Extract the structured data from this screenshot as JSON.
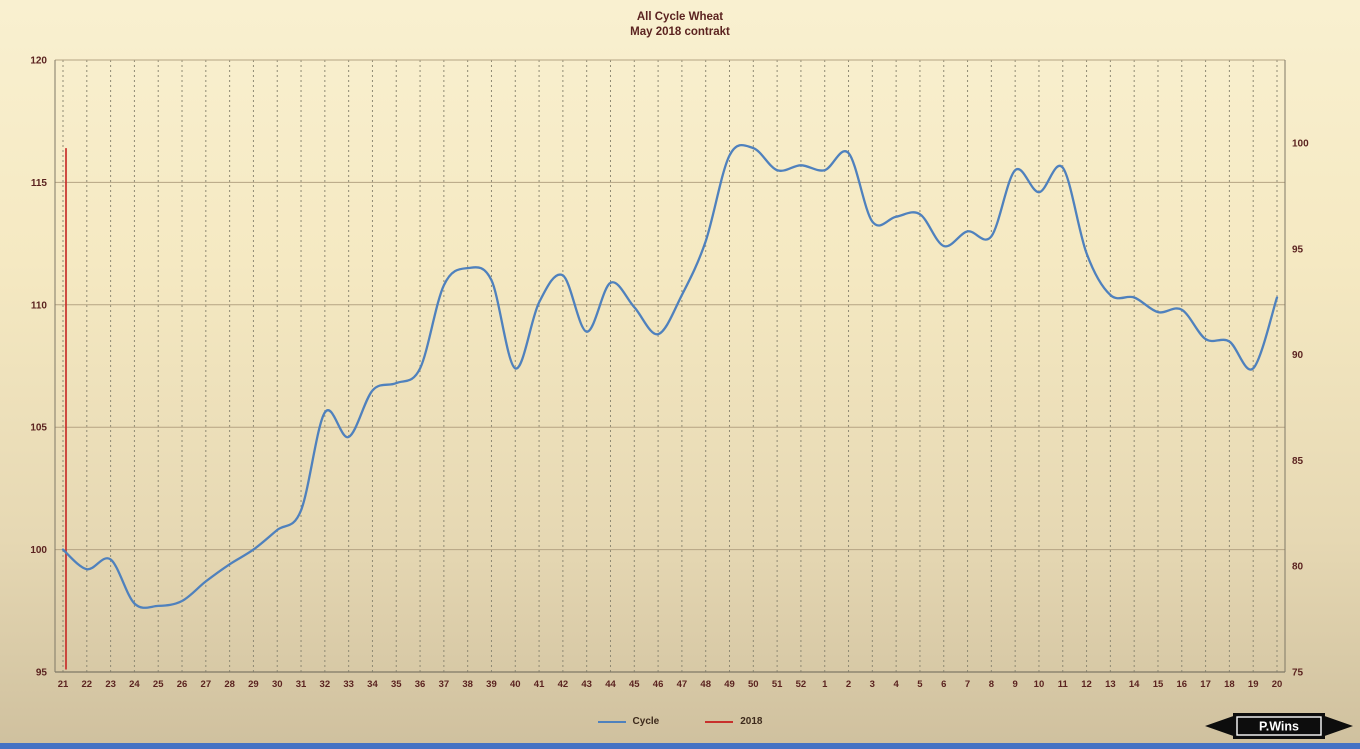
{
  "title": {
    "line1": "All Cycle Wheat",
    "line2": "May 2018 contrakt"
  },
  "legend": [
    {
      "label": "Cycle",
      "color": "#4f81bd"
    },
    {
      "label": "2018",
      "color": "#c8302c"
    }
  ],
  "logo_text": "P.Wins",
  "colors": {
    "grid_vertical": "#8f8a74",
    "grid_horizontal": "#b5a483",
    "axis_line": "#7f7866",
    "axis_text": "#5b2320"
  },
  "chart_data": {
    "type": "line",
    "title": "All Cycle Wheat",
    "subtitle": "May 2018 contrakt",
    "categories": [
      "21",
      "22",
      "23",
      "24",
      "25",
      "26",
      "27",
      "28",
      "29",
      "30",
      "31",
      "32",
      "33",
      "34",
      "35",
      "36",
      "37",
      "38",
      "39",
      "40",
      "41",
      "42",
      "43",
      "44",
      "45",
      "46",
      "47",
      "48",
      "49",
      "50",
      "51",
      "52",
      "1",
      "2",
      "3",
      "4",
      "5",
      "6",
      "7",
      "8",
      "9",
      "10",
      "11",
      "12",
      "13",
      "14",
      "15",
      "16",
      "17",
      "18",
      "19",
      "20"
    ],
    "series": [
      {
        "name": "Cycle",
        "color": "#4f81bd",
        "values": [
          100.0,
          99.2,
          99.6,
          97.8,
          97.7,
          97.9,
          98.7,
          99.4,
          100.0,
          100.8,
          101.6,
          105.6,
          104.6,
          106.5,
          106.8,
          107.4,
          110.8,
          111.5,
          111.0,
          107.4,
          110.1,
          111.2,
          108.9,
          110.9,
          109.9,
          108.8,
          110.4,
          112.6,
          116.1,
          116.4,
          115.5,
          115.7,
          115.5,
          116.2,
          113.4,
          113.6,
          113.7,
          112.4,
          113.0,
          112.8,
          115.5,
          114.6,
          115.6,
          112.1,
          110.4,
          110.3,
          109.7,
          109.8,
          108.6,
          108.5,
          107.4,
          110.3
        ]
      },
      {
        "name": "2018",
        "color": "#c8302c",
        "vertical_line": {
          "category": "21",
          "from": 95.1,
          "to": 116.4
        }
      }
    ],
    "left_axis": {
      "min": 95,
      "max": 120,
      "ticks": [
        95,
        100,
        105,
        110,
        115,
        120
      ]
    },
    "right_axis": {
      "min": 75,
      "max": 100,
      "ticks": [
        75,
        80,
        85,
        90,
        95,
        100
      ],
      "span_fraction": 0.864
    },
    "grid": {
      "vertical_dashed": true,
      "horizontal_ticks": [
        100,
        105,
        110,
        115,
        120
      ]
    },
    "legend_position": "bottom"
  }
}
